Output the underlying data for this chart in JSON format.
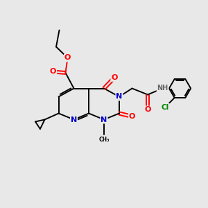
{
  "background_color": "#e8e8e8",
  "atom_colors": {
    "C": "#000000",
    "N": "#0000cc",
    "O": "#ff0000",
    "Cl": "#008800",
    "H": "#666666"
  },
  "figsize": [
    3.0,
    3.0
  ],
  "dpi": 100
}
